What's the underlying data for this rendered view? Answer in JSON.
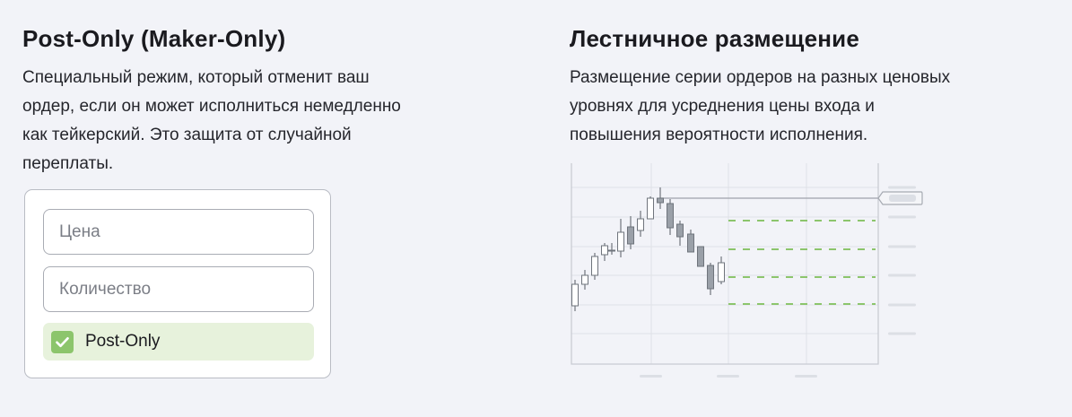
{
  "post_only": {
    "title": "Post-Only (Maker-Only)",
    "description_lines": [
      "Специальный режим, который отменит ваш",
      "ордер, если он может исполниться немедленно",
      "как тейкерский. Это защита от случайной",
      "переплаты."
    ],
    "form": {
      "price_placeholder": "Цена",
      "quantity_placeholder": "Количество",
      "checkbox_label": "Post-Only",
      "checkbox_checked": true
    }
  },
  "ladder": {
    "title": "Лестничное размещение",
    "description_lines": [
      "Размещение серии ордеров на разных ценовых",
      "уровнях для усреднения цены входа и",
      "повышения вероятности исполнения."
    ]
  },
  "colors": {
    "accent_green": "#8cc56c",
    "checkbox_row_bg": "#e7f2dc",
    "ladder_order_line": "#8cc56c",
    "bearish_candle": "#9aa0a8"
  }
}
